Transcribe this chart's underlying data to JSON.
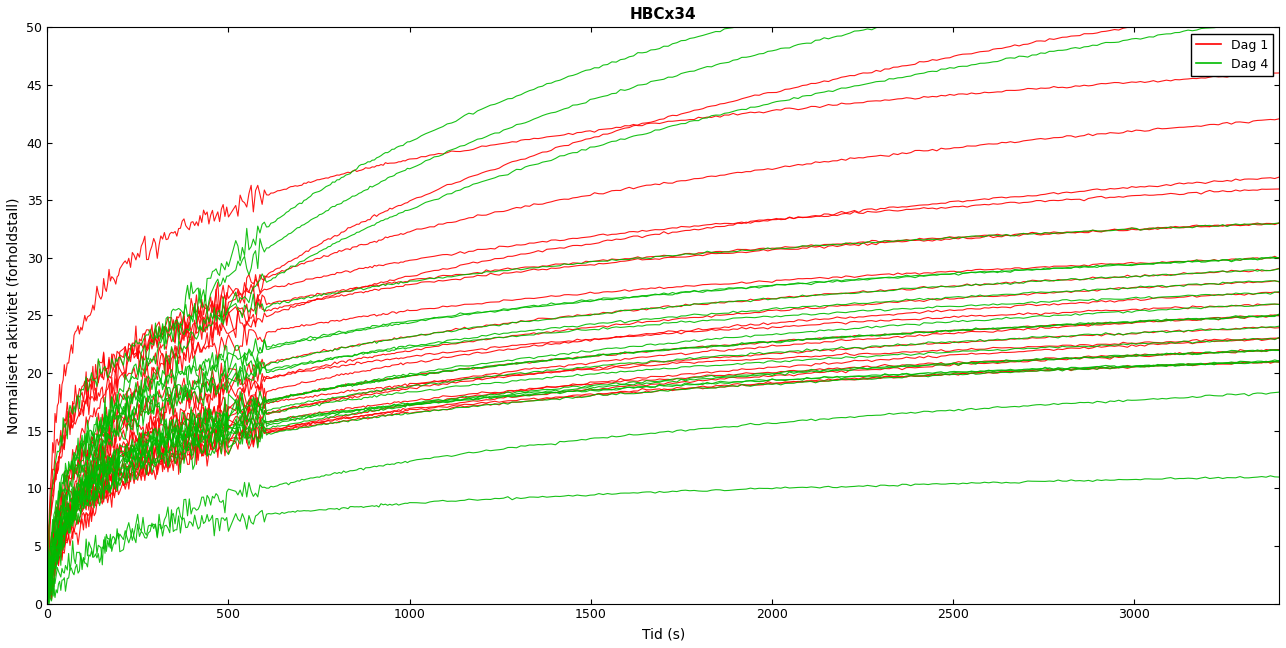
{
  "title": "HBCx34",
  "xlabel": "Tid (s)",
  "ylabel": "Normalisert aktivitet (forholdstall)",
  "xlim": [
    0,
    3400
  ],
  "ylim": [
    0,
    50
  ],
  "xticks": [
    0,
    500,
    1000,
    1500,
    2000,
    2500,
    3000
  ],
  "yticks": [
    0,
    5,
    10,
    15,
    20,
    25,
    30,
    35,
    40,
    45,
    50
  ],
  "legend_labels": [
    "Dag 1",
    "Dag 4"
  ],
  "red_color": "#ff0000",
  "green_color": "#00bb00",
  "background_color": "#ffffff",
  "title_fontsize": 11,
  "axis_fontsize": 10,
  "dag1_finals_at_3400": [
    46,
    42,
    37,
    36,
    34,
    33,
    33,
    30,
    29,
    28,
    27,
    26,
    25,
    25,
    24,
    23,
    23,
    22,
    22,
    21,
    21
  ],
  "dag4_finals_at_3400": [
    36,
    35,
    33,
    33,
    30,
    30,
    29,
    28,
    27,
    26,
    25,
    25,
    24,
    23,
    22,
    22,
    21,
    21,
    21,
    12,
    11
  ],
  "dag1_early_vals": [
    33,
    28,
    25,
    26,
    25,
    25,
    23,
    22,
    20,
    19,
    18,
    18,
    17,
    17,
    16,
    16,
    15,
    15,
    15,
    14,
    14
  ],
  "dag4_early_vals": [
    28,
    27,
    25,
    24,
    22,
    22,
    21,
    20,
    19,
    18,
    17,
    17,
    16,
    16,
    15,
    15,
    14,
    14,
    14,
    9,
    8
  ]
}
